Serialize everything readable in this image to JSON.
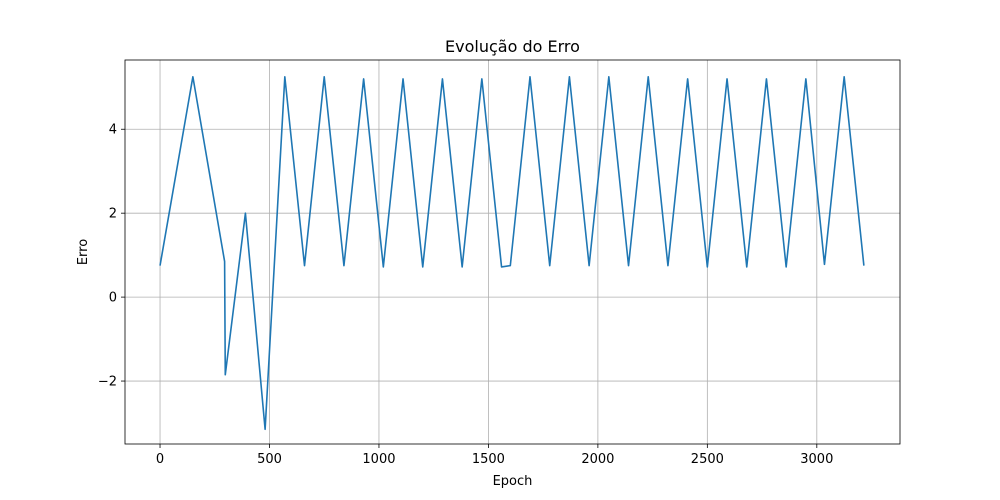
{
  "chart_data": {
    "type": "line",
    "title": "Evolução do Erro",
    "xlabel": "Epoch",
    "ylabel": "Erro",
    "xlim": [
      -160,
      3380
    ],
    "ylim": [
      -3.5,
      5.65
    ],
    "grid": true,
    "line_color": "#1f77b4",
    "x_ticks": [
      {
        "value": 0,
        "label": "0"
      },
      {
        "value": 500,
        "label": "500"
      },
      {
        "value": 1000,
        "label": "1000"
      },
      {
        "value": 1500,
        "label": "1500"
      },
      {
        "value": 2000,
        "label": "2000"
      },
      {
        "value": 2500,
        "label": "2500"
      },
      {
        "value": 3000,
        "label": "3000"
      }
    ],
    "y_ticks": [
      {
        "value": -2,
        "label": "−2"
      },
      {
        "value": 0,
        "label": "0"
      },
      {
        "value": 2,
        "label": "2"
      },
      {
        "value": 4,
        "label": "4"
      }
    ],
    "series": [
      {
        "points": [
          [
            0,
            0.75
          ],
          [
            150,
            5.25
          ],
          [
            295,
            0.85
          ],
          [
            298,
            -1.85
          ],
          [
            390,
            2.0
          ],
          [
            480,
            -3.15
          ],
          [
            570,
            5.25
          ],
          [
            660,
            0.75
          ],
          [
            750,
            5.25
          ],
          [
            840,
            0.75
          ],
          [
            930,
            5.2
          ],
          [
            1020,
            0.72
          ],
          [
            1110,
            5.2
          ],
          [
            1200,
            0.72
          ],
          [
            1290,
            5.2
          ],
          [
            1380,
            0.72
          ],
          [
            1470,
            5.2
          ],
          [
            1560,
            0.72
          ],
          [
            1600,
            0.75
          ],
          [
            1690,
            5.25
          ],
          [
            1780,
            0.75
          ],
          [
            1870,
            5.25
          ],
          [
            1960,
            0.75
          ],
          [
            2050,
            5.25
          ],
          [
            2140,
            0.75
          ],
          [
            2230,
            5.25
          ],
          [
            2320,
            0.75
          ],
          [
            2410,
            5.2
          ],
          [
            2500,
            0.72
          ],
          [
            2590,
            5.2
          ],
          [
            2680,
            0.72
          ],
          [
            2770,
            5.2
          ],
          [
            2860,
            0.72
          ],
          [
            2950,
            5.2
          ],
          [
            3035,
            0.78
          ],
          [
            3125,
            5.25
          ],
          [
            3215,
            0.75
          ]
        ]
      }
    ]
  }
}
